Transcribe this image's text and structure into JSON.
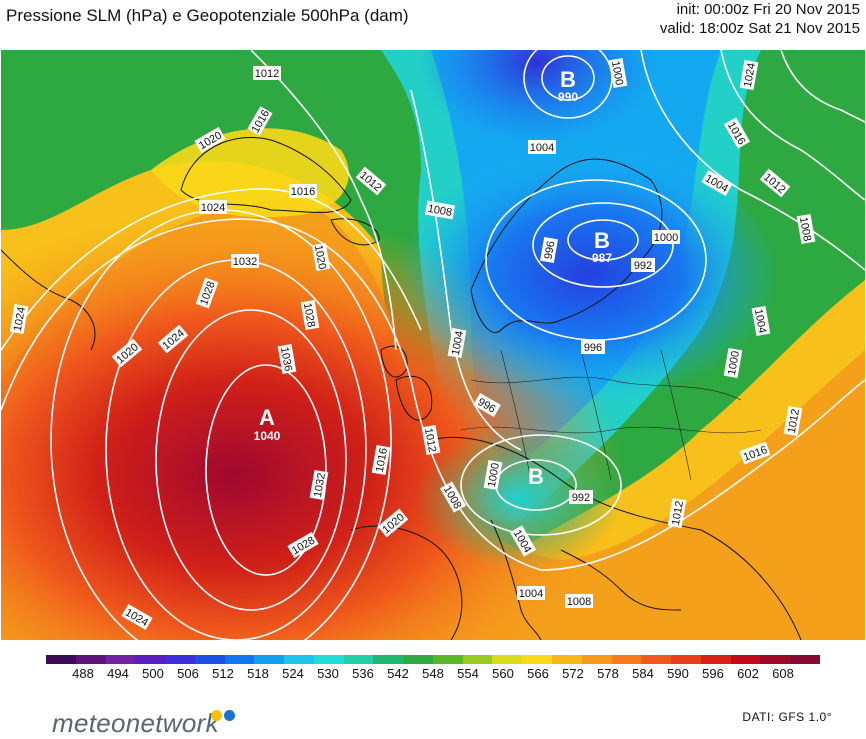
{
  "title": "Pressione SLM (hPa) e Geopotenziale 500hPa (dam)",
  "run": {
    "init": "init: 00:00z Fri 20 Nov 2015",
    "valid": "valid: 18:00z Sat 21 Nov 2015"
  },
  "colorbar": {
    "labels": [
      "488",
      "494",
      "500",
      "506",
      "512",
      "518",
      "524",
      "530",
      "536",
      "542",
      "548",
      "554",
      "560",
      "566",
      "572",
      "578",
      "584",
      "590",
      "596",
      "602",
      "608"
    ],
    "colors": [
      "#3d0a55",
      "#5b1478",
      "#7222a0",
      "#5a1dc0",
      "#3a2fd8",
      "#1d50e8",
      "#0f78f0",
      "#14a0f0",
      "#1ec4ee",
      "#22dcd8",
      "#22d0a8",
      "#1eb870",
      "#2ea840",
      "#5ab828",
      "#9acd22",
      "#d8dc1c",
      "#f8d818",
      "#f8b81a",
      "#f8981c",
      "#f8781c",
      "#f05a1c",
      "#e84018",
      "#d82014",
      "#c00a18",
      "#a00828",
      "#880a30"
    ]
  },
  "highs_lows": [
    {
      "letter": "A",
      "value": "1040"
    },
    {
      "letter": "B",
      "value": "990"
    },
    {
      "letter": "B",
      "value": "987"
    },
    {
      "letter": "B",
      "value": ""
    }
  ],
  "isobar_labels": [
    "1012",
    "1016",
    "1020",
    "1020",
    "1024",
    "1016",
    "1012",
    "1008",
    "1004",
    "1000",
    "1024",
    "1016",
    "1012",
    "1008",
    "1004",
    "1000",
    "996",
    "992",
    "1028",
    "1032",
    "1020",
    "1024",
    "1028",
    "1036",
    "1032",
    "1028",
    "1024",
    "1020",
    "1016",
    "1012",
    "1008",
    "1004",
    "1004",
    "1000",
    "996",
    "992",
    "1004",
    "1008",
    "1012",
    "1016",
    "1012",
    "1000",
    "996",
    "1024",
    "1004"
  ],
  "logo": "meteonetwork",
  "logo_dots": [
    "#f5c400",
    "#1a6fd8"
  ],
  "source": "DATI:  GFS  1.0°"
}
